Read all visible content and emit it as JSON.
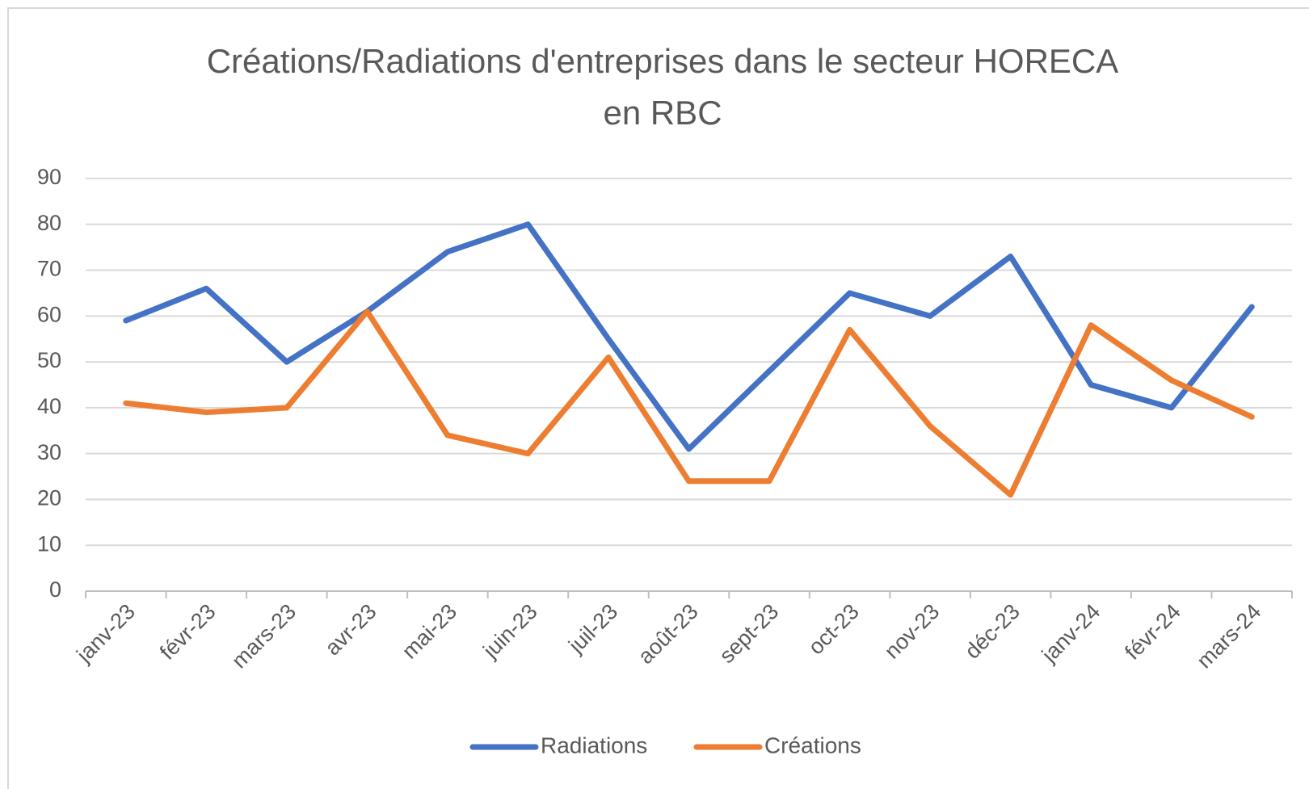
{
  "chart_data": {
    "type": "line",
    "title": "Créations/Radiations d'entreprises dans le secteur HORECA en RBC",
    "categories": [
      "janv-23",
      "févr-23",
      "mars-23",
      "avr-23",
      "mai-23",
      "juin-23",
      "juil-23",
      "août-23",
      "sept-23",
      "oct-23",
      "nov-23",
      "déc-23",
      "janv-24",
      "févr-24",
      "mars-24"
    ],
    "series": [
      {
        "name": "Radiations",
        "color": "#4472c4",
        "values": [
          59,
          66,
          50,
          61,
          74,
          80,
          55,
          31,
          48,
          65,
          60,
          73,
          45,
          40,
          62
        ]
      },
      {
        "name": "Créations",
        "color": "#ed7d31",
        "values": [
          41,
          39,
          40,
          61,
          34,
          30,
          51,
          24,
          24,
          57,
          36,
          21,
          58,
          46,
          38
        ]
      }
    ],
    "ylim": [
      0,
      90
    ],
    "yticks": [
      0,
      10,
      20,
      30,
      40,
      50,
      60,
      70,
      80,
      90
    ],
    "grid": true,
    "legend": "bottom"
  }
}
